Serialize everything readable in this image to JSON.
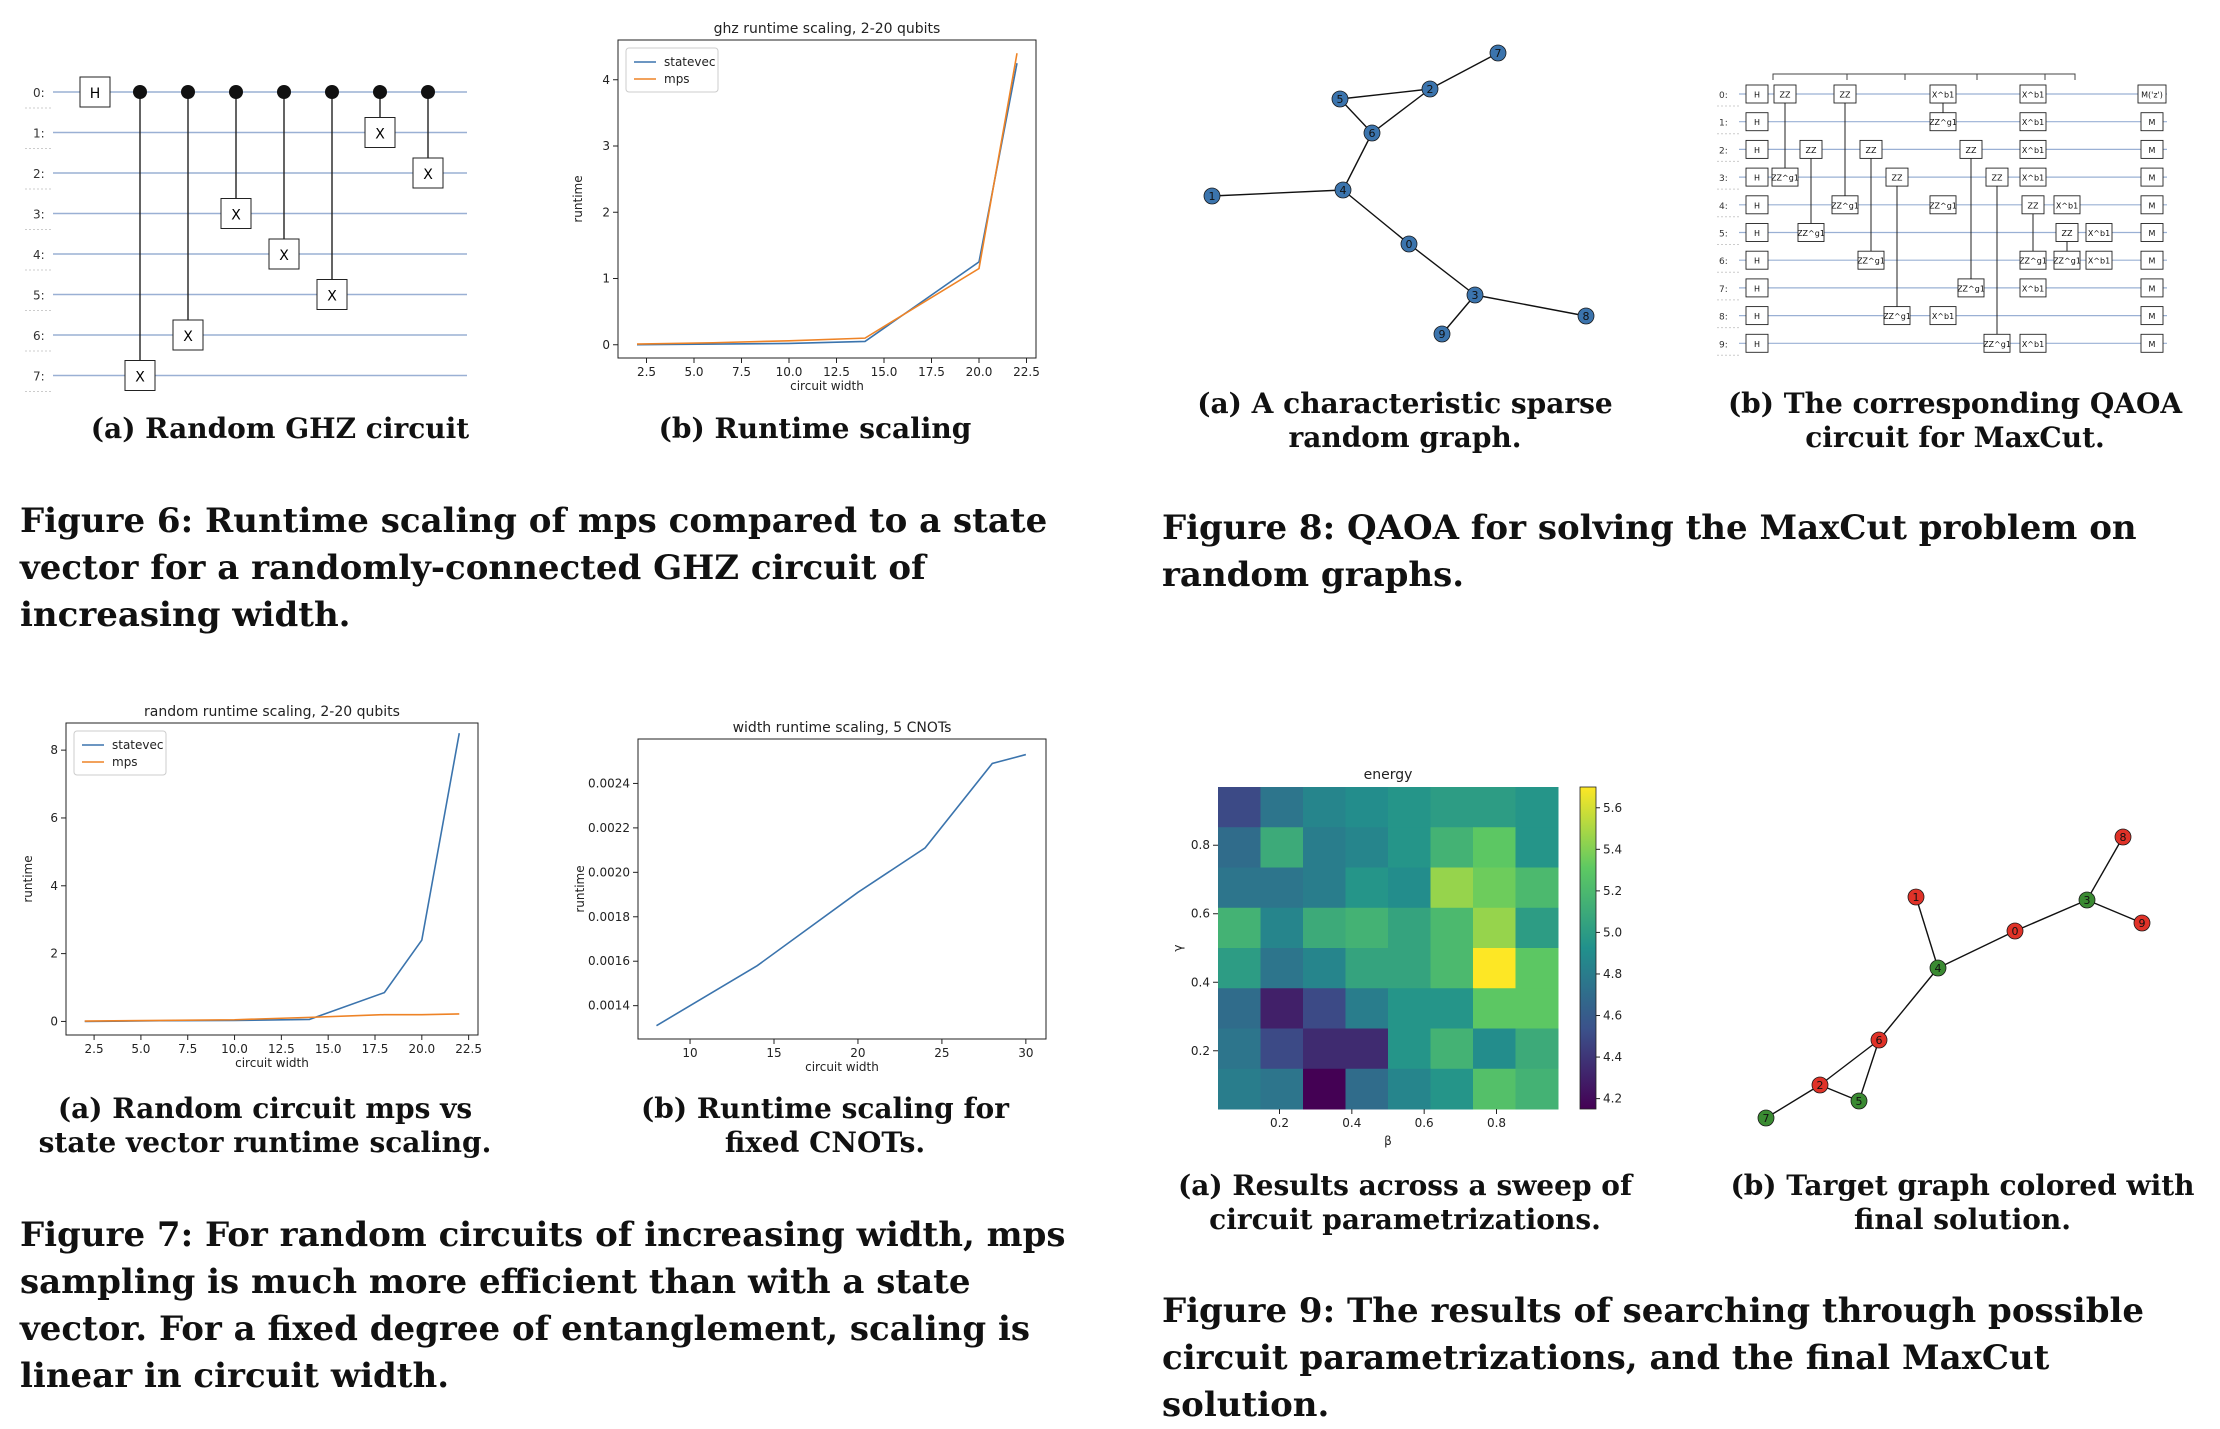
{
  "fig6": {
    "caption": "Figure 6: Runtime scaling of mps compared to a state vector for a randomly-connected GHZ circuit of increasing width.",
    "sub_a": "(a) Random GHZ circuit",
    "sub_b": "(b) Runtime scaling",
    "circuit_a": {
      "qubits": [
        "0:",
        "1:",
        "2:",
        "3:",
        "4:",
        "5:",
        "6:",
        "7:"
      ],
      "h_label": "H",
      "x_label": "X"
    }
  },
  "fig7": {
    "caption": "Figure 7: For random circuits of increasing width, mps sampling is much more efficient than with a state vector. For a fixed degree of entanglement, scaling is linear in circuit width.",
    "sub_a": "(a) Random circuit mps vs state vector runtime scaling.",
    "sub_b": "(b) Runtime scaling for fixed CNOTs."
  },
  "fig8": {
    "caption": "Figure 8: QAOA for solving the MaxCut problem on random graphs.",
    "sub_a": "(a) A characteristic sparse random graph.",
    "sub_b": "(b) The corresponding QAOA circuit for MaxCut.",
    "graph": {
      "nodes": [
        "0",
        "1",
        "2",
        "3",
        "4",
        "5",
        "6",
        "7",
        "8",
        "9"
      ],
      "edges": [
        [
          "7",
          "2"
        ],
        [
          "2",
          "5"
        ],
        [
          "2",
          "6"
        ],
        [
          "5",
          "6"
        ],
        [
          "6",
          "4"
        ],
        [
          "1",
          "4"
        ],
        [
          "4",
          "0"
        ],
        [
          "0",
          "3"
        ],
        [
          "3",
          "8"
        ],
        [
          "3",
          "9"
        ]
      ],
      "color": "#3b74ad"
    },
    "qaoa_circuit": {
      "qubits": [
        "0:",
        "1:",
        "2:",
        "3:",
        "4:",
        "5:",
        "6:",
        "7:",
        "8:",
        "9:"
      ],
      "labels": {
        "h": "H",
        "zz": "ZZ",
        "zzg": "ZZ^g1",
        "xb": "X^b1",
        "m": "M",
        "m0": "M('z')"
      }
    }
  },
  "fig9": {
    "caption": "Figure 9: The results of searching through possible circuit parametrizations, and the final MaxCut solution.",
    "sub_a": "(a) Results across a sweep of circuit parametrizations.",
    "sub_b": "(b) Target graph colored with final solution.",
    "graph": {
      "nodes": [
        "0",
        "1",
        "2",
        "3",
        "4",
        "5",
        "6",
        "7",
        "8",
        "9"
      ],
      "edges": [
        [
          "8",
          "3"
        ],
        [
          "3",
          "9"
        ],
        [
          "3",
          "0"
        ],
        [
          "0",
          "4"
        ],
        [
          "1",
          "4"
        ],
        [
          "4",
          "6"
        ],
        [
          "6",
          "2"
        ],
        [
          "6",
          "5"
        ],
        [
          "2",
          "5"
        ],
        [
          "2",
          "7"
        ]
      ],
      "red_nodes": [
        "0",
        "1",
        "2",
        "6",
        "8",
        "9"
      ],
      "green_nodes": [
        "3",
        "4",
        "5",
        "7"
      ],
      "red": "#e03228",
      "green": "#3a8a32"
    }
  },
  "chart_data": [
    {
      "id": "fig6b",
      "type": "line",
      "title": "ghz runtime scaling, 2-20 qubits",
      "xlabel": "circuit width",
      "ylabel": "runtime",
      "xlim": [
        1,
        23
      ],
      "ylim": [
        -0.2,
        4.6
      ],
      "xticks": [
        2.5,
        5.0,
        7.5,
        10.0,
        12.5,
        15.0,
        17.5,
        20.0,
        22.5
      ],
      "yticks": [
        0,
        1,
        2,
        3,
        4
      ],
      "legend": "top-left",
      "series": [
        {
          "name": "statevec",
          "color": "#3b74ad",
          "x": [
            2,
            6,
            10,
            14,
            20,
            22
          ],
          "y": [
            0.0,
            0.01,
            0.02,
            0.05,
            1.25,
            4.25
          ]
        },
        {
          "name": "mps",
          "color": "#ee8326",
          "x": [
            2,
            6,
            10,
            14,
            20,
            22
          ],
          "y": [
            0.01,
            0.03,
            0.06,
            0.1,
            1.15,
            4.4
          ]
        }
      ]
    },
    {
      "id": "fig7a",
      "type": "line",
      "title": "random runtime scaling, 2-20 qubits",
      "xlabel": "circuit width",
      "ylabel": "runtime",
      "xlim": [
        1,
        23
      ],
      "ylim": [
        -0.4,
        8.8
      ],
      "xticks": [
        2.5,
        5.0,
        7.5,
        10.0,
        12.5,
        15.0,
        17.5,
        20.0,
        22.5
      ],
      "yticks": [
        0,
        2,
        4,
        6,
        8
      ],
      "legend": "top-left",
      "series": [
        {
          "name": "statevec",
          "color": "#3b74ad",
          "x": [
            2,
            6,
            10,
            14,
            18,
            20,
            22
          ],
          "y": [
            0.0,
            0.02,
            0.03,
            0.06,
            0.85,
            2.4,
            8.5
          ]
        },
        {
          "name": "mps",
          "color": "#ee8326",
          "x": [
            2,
            6,
            10,
            14,
            18,
            20,
            22
          ],
          "y": [
            0.01,
            0.03,
            0.05,
            0.12,
            0.2,
            0.2,
            0.22
          ]
        }
      ]
    },
    {
      "id": "fig7b",
      "type": "line",
      "title": "width runtime scaling, 5 CNOTs",
      "xlabel": "circuit width",
      "ylabel": "runtime",
      "xlim": [
        6.9,
        31.2
      ],
      "ylim": [
        0.00125,
        0.0026
      ],
      "xticks": [
        10,
        15,
        20,
        25,
        30
      ],
      "yticks": [
        0.0014,
        0.0016,
        0.0018,
        0.002,
        0.0022,
        0.0024
      ],
      "ytick_labels": [
        "0.0014",
        "0.0016",
        "0.0018",
        "0.0020",
        "0.0022",
        "0.0024"
      ],
      "series": [
        {
          "color": "#3b74ad",
          "x": [
            8,
            14,
            20,
            24,
            28,
            30
          ],
          "y": [
            0.00131,
            0.00158,
            0.00191,
            0.00211,
            0.00249,
            0.00253
          ]
        }
      ]
    },
    {
      "id": "fig9a",
      "type": "heatmap",
      "title": "energy",
      "xlabel": "β",
      "ylabel": "γ",
      "xlim": [
        0.03,
        0.97
      ],
      "ylim": [
        0.03,
        0.97
      ],
      "xticks": [
        0.2,
        0.4,
        0.6,
        0.8
      ],
      "yticks": [
        0.2,
        0.4,
        0.6,
        0.8
      ],
      "colorbar_ticks": [
        4.2,
        4.4,
        4.6,
        4.8,
        5.0,
        5.2,
        5.4,
        5.6
      ],
      "vmin": 4.15,
      "vmax": 5.7,
      "rows_top_to_bottom": [
        [
          4.5,
          4.75,
          4.85,
          4.9,
          4.95,
          5.0,
          5.0,
          4.95
        ],
        [
          4.7,
          5.1,
          4.8,
          4.85,
          4.95,
          5.15,
          5.3,
          4.95
        ],
        [
          4.75,
          4.75,
          4.8,
          4.95,
          4.9,
          5.45,
          5.35,
          5.2
        ],
        [
          5.15,
          4.85,
          5.1,
          5.15,
          5.05,
          5.2,
          5.45,
          5.0
        ],
        [
          5.0,
          4.75,
          4.85,
          5.05,
          5.05,
          5.2,
          5.7,
          5.3
        ],
        [
          4.7,
          4.3,
          4.5,
          4.8,
          4.95,
          4.95,
          5.3,
          5.3
        ],
        [
          4.75,
          4.5,
          4.35,
          4.35,
          4.95,
          5.15,
          4.9,
          5.1
        ],
        [
          4.8,
          4.75,
          4.15,
          4.7,
          4.85,
          4.95,
          5.25,
          5.15
        ]
      ]
    }
  ]
}
